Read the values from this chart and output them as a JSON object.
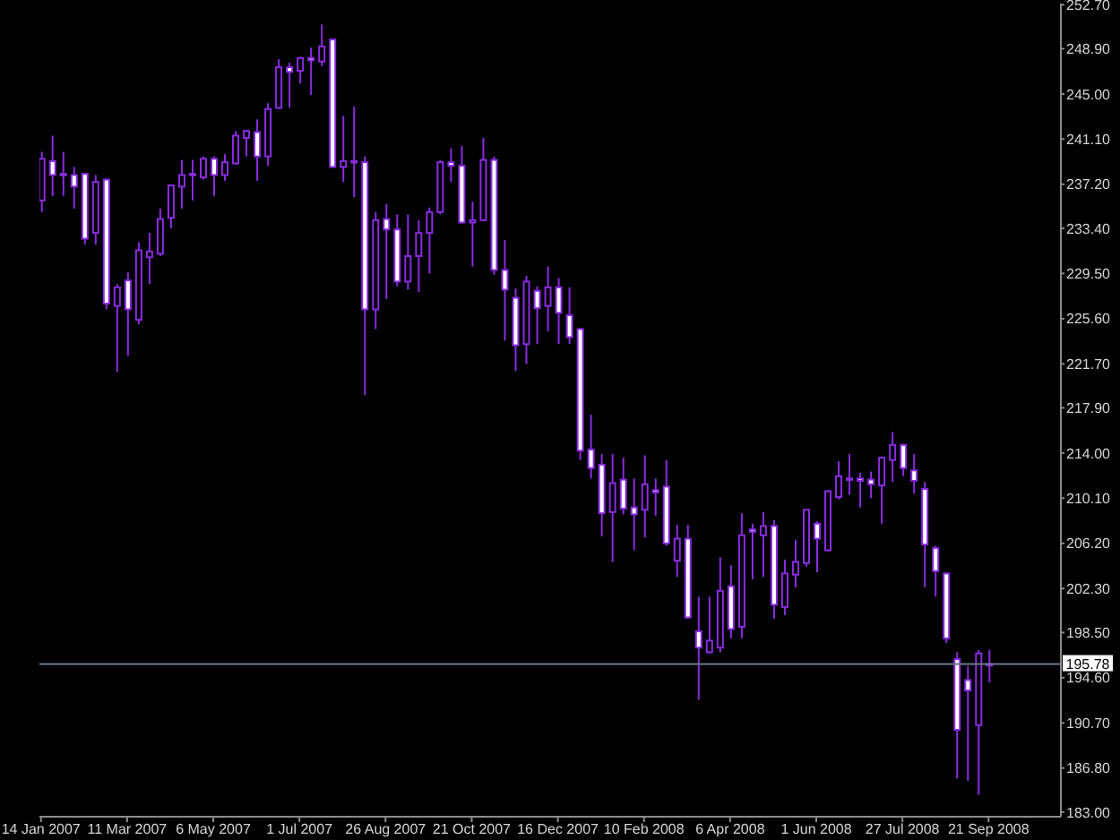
{
  "chart_data": {
    "type": "candlestick",
    "x": [
      "2007-01-14",
      "2007-01-21",
      "2007-01-28",
      "2007-02-04",
      "2007-02-11",
      "2007-02-18",
      "2007-02-25",
      "2007-03-04",
      "2007-03-11",
      "2007-03-18",
      "2007-03-25",
      "2007-04-01",
      "2007-04-08",
      "2007-04-15",
      "2007-04-22",
      "2007-04-29",
      "2007-05-06",
      "2007-05-13",
      "2007-05-20",
      "2007-05-27",
      "2007-06-03",
      "2007-06-10",
      "2007-06-17",
      "2007-06-24",
      "2007-07-01",
      "2007-07-08",
      "2007-07-15",
      "2007-07-22",
      "2007-07-29",
      "2007-08-05",
      "2007-08-12",
      "2007-08-19",
      "2007-08-26",
      "2007-09-02",
      "2007-09-09",
      "2007-09-16",
      "2007-09-23",
      "2007-09-30",
      "2007-10-07",
      "2007-10-14",
      "2007-10-21",
      "2007-10-28",
      "2007-11-04",
      "2007-11-11",
      "2007-11-18",
      "2007-11-25",
      "2007-12-02",
      "2007-12-09",
      "2007-12-16",
      "2007-12-23",
      "2007-12-30",
      "2008-01-06",
      "2008-01-13",
      "2008-01-20",
      "2008-01-27",
      "2008-02-03",
      "2008-02-10",
      "2008-02-17",
      "2008-02-24",
      "2008-03-02",
      "2008-03-09",
      "2008-03-16",
      "2008-03-23",
      "2008-03-30",
      "2008-04-06",
      "2008-04-13",
      "2008-04-20",
      "2008-04-27",
      "2008-05-04",
      "2008-05-11",
      "2008-05-18",
      "2008-05-25",
      "2008-06-01",
      "2008-06-08",
      "2008-06-15",
      "2008-06-22",
      "2008-06-29",
      "2008-07-06",
      "2008-07-13",
      "2008-07-20",
      "2008-07-27",
      "2008-08-03",
      "2008-08-10",
      "2008-08-17",
      "2008-08-24",
      "2008-08-31",
      "2008-09-07",
      "2008-09-14",
      "2008-09-21"
    ],
    "ohlc": [
      [
        235.8,
        240.0,
        234.8,
        239.4
      ],
      [
        239.2,
        241.4,
        236.2,
        238.0
      ],
      [
        238.0,
        240.0,
        236.2,
        238.1
      ],
      [
        238.0,
        238.7,
        235.1,
        237.0
      ],
      [
        238.1,
        238.2,
        232.0,
        232.5
      ],
      [
        233.0,
        238.0,
        232.0,
        237.4
      ],
      [
        237.6,
        237.7,
        226.4,
        226.9
      ],
      [
        226.7,
        228.6,
        221.0,
        228.3
      ],
      [
        228.9,
        229.6,
        222.4,
        226.4
      ],
      [
        225.5,
        232.2,
        225.1,
        231.5
      ],
      [
        230.9,
        233.0,
        228.6,
        231.4
      ],
      [
        231.2,
        235.1,
        231.0,
        234.2
      ],
      [
        234.3,
        237.2,
        233.4,
        237.1
      ],
      [
        237.0,
        239.3,
        235.1,
        238.0
      ],
      [
        238.0,
        239.3,
        235.8,
        238.1
      ],
      [
        237.8,
        239.6,
        237.6,
        239.4
      ],
      [
        239.4,
        239.6,
        236.2,
        238.0
      ],
      [
        238.0,
        239.8,
        237.5,
        239.1
      ],
      [
        239.0,
        241.8,
        238.9,
        241.4
      ],
      [
        241.2,
        241.9,
        239.6,
        241.8
      ],
      [
        241.7,
        242.8,
        237.5,
        239.6
      ],
      [
        239.6,
        244.2,
        238.8,
        243.7
      ],
      [
        243.8,
        248.0,
        243.7,
        247.3
      ],
      [
        247.3,
        247.7,
        243.8,
        246.9
      ],
      [
        247.0,
        248.2,
        245.9,
        248.1
      ],
      [
        248.1,
        249.0,
        244.9,
        247.9
      ],
      [
        247.8,
        251.0,
        247.4,
        249.1
      ],
      [
        249.7,
        249.8,
        238.6,
        238.7
      ],
      [
        238.7,
        243.1,
        237.4,
        239.2
      ],
      [
        239.2,
        243.9,
        236.1,
        239.1
      ],
      [
        239.1,
        239.6,
        219.0,
        226.4
      ],
      [
        226.4,
        234.8,
        224.7,
        234.1
      ],
      [
        234.2,
        235.5,
        227.3,
        233.3
      ],
      [
        233.3,
        234.6,
        228.4,
        228.8
      ],
      [
        228.8,
        234.6,
        228.1,
        231.0
      ],
      [
        231.0,
        234.1,
        227.9,
        233.0
      ],
      [
        233.0,
        235.2,
        229.5,
        234.8
      ],
      [
        234.8,
        239.3,
        234.6,
        239.1
      ],
      [
        239.1,
        240.3,
        237.4,
        238.8
      ],
      [
        238.8,
        240.5,
        233.8,
        233.9
      ],
      [
        233.9,
        235.7,
        230.1,
        234.1
      ],
      [
        234.1,
        241.2,
        234.0,
        239.3
      ],
      [
        239.3,
        239.6,
        229.4,
        229.8
      ],
      [
        229.8,
        232.4,
        223.7,
        228.1
      ],
      [
        227.4,
        228.2,
        221.1,
        223.3
      ],
      [
        223.4,
        229.3,
        221.7,
        228.8
      ],
      [
        228.0,
        228.4,
        223.4,
        226.5
      ],
      [
        226.7,
        230.1,
        224.5,
        228.3
      ],
      [
        228.3,
        229.1,
        223.4,
        226.1
      ],
      [
        225.9,
        228.3,
        223.4,
        224.0
      ],
      [
        224.7,
        224.8,
        213.4,
        214.2
      ],
      [
        214.3,
        217.3,
        211.8,
        212.7
      ],
      [
        213.0,
        213.9,
        206.8,
        208.8
      ],
      [
        208.9,
        213.9,
        204.6,
        211.4
      ],
      [
        211.7,
        213.6,
        208.7,
        209.2
      ],
      [
        209.3,
        211.8,
        205.6,
        208.7
      ],
      [
        209.1,
        213.8,
        206.7,
        211.3
      ],
      [
        210.8,
        211.8,
        208.6,
        210.6
      ],
      [
        211.1,
        213.4,
        206.0,
        206.2
      ],
      [
        204.7,
        207.8,
        203.3,
        206.6
      ],
      [
        206.6,
        207.8,
        199.7,
        199.8
      ],
      [
        198.6,
        201.6,
        192.7,
        197.2
      ],
      [
        196.8,
        201.6,
        196.7,
        197.8
      ],
      [
        197.2,
        205.0,
        196.8,
        202.1
      ],
      [
        202.5,
        204.3,
        198.0,
        198.8
      ],
      [
        199.0,
        208.8,
        198.0,
        206.9
      ],
      [
        207.4,
        207.9,
        203.1,
        207.2
      ],
      [
        206.9,
        208.9,
        203.3,
        207.7
      ],
      [
        207.7,
        208.2,
        199.7,
        200.9
      ],
      [
        200.7,
        204.8,
        200.0,
        203.6
      ],
      [
        203.5,
        206.5,
        202.4,
        204.6
      ],
      [
        204.5,
        209.1,
        204.2,
        209.1
      ],
      [
        207.9,
        208.1,
        203.7,
        206.6
      ],
      [
        205.6,
        210.8,
        205.5,
        210.7
      ],
      [
        210.2,
        213.3,
        210.0,
        212.0
      ],
      [
        211.7,
        213.9,
        210.4,
        211.8
      ],
      [
        211.8,
        212.3,
        209.3,
        211.6
      ],
      [
        211.7,
        212.4,
        210.1,
        211.3
      ],
      [
        211.2,
        213.7,
        207.9,
        213.6
      ],
      [
        213.4,
        215.8,
        211.5,
        214.7
      ],
      [
        214.7,
        214.8,
        212.0,
        212.7
      ],
      [
        212.5,
        213.9,
        210.5,
        211.6
      ],
      [
        210.9,
        211.5,
        202.4,
        206.1
      ],
      [
        205.8,
        206.0,
        201.6,
        203.8
      ],
      [
        203.6,
        203.7,
        197.6,
        198.0
      ],
      [
        196.2,
        196.8,
        185.9,
        190.1
      ],
      [
        194.4,
        195.6,
        185.7,
        193.5
      ],
      [
        190.5,
        197.0,
        184.5,
        196.7
      ],
      [
        195.7,
        197.0,
        194.2,
        195.78
      ]
    ],
    "color": "#8a2be2",
    "xlim": [
      "2007-01-13",
      "2008-11-07"
    ],
    "xticks": [
      {
        "value": "2007-01-14",
        "label": "14 Jan 2007"
      },
      {
        "value": "2007-03-11",
        "label": "11 Mar 2007"
      },
      {
        "value": "2007-05-06",
        "label": "6 May 2007"
      },
      {
        "value": "2007-07-01",
        "label": "1 Jul 2007"
      },
      {
        "value": "2007-08-26",
        "label": "26 Aug 2007"
      },
      {
        "value": "2007-10-21",
        "label": "21 Oct 2007"
      },
      {
        "value": "2007-12-16",
        "label": "16 Dec 2007"
      },
      {
        "value": "2008-02-10",
        "label": "10 Feb 2008"
      },
      {
        "value": "2008-04-06",
        "label": "6 Apr 2008"
      },
      {
        "value": "2008-06-01",
        "label": "1 Jun 2008"
      },
      {
        "value": "2008-07-27",
        "label": "27 Jul 2008"
      },
      {
        "value": "2008-09-21",
        "label": "21 Sep 2008"
      }
    ],
    "ylim": [
      182.6,
      252.8
    ],
    "yticks": [
      {
        "value": 252.7,
        "label": "252.70"
      },
      {
        "value": 248.9,
        "label": "248.90"
      },
      {
        "value": 245.0,
        "label": "245.00"
      },
      {
        "value": 241.1,
        "label": "241.10"
      },
      {
        "value": 237.2,
        "label": "237.20"
      },
      {
        "value": 233.4,
        "label": "233.40"
      },
      {
        "value": 229.5,
        "label": "229.50"
      },
      {
        "value": 225.6,
        "label": "225.60"
      },
      {
        "value": 221.7,
        "label": "221.70"
      },
      {
        "value": 217.9,
        "label": "217.90"
      },
      {
        "value": 214.0,
        "label": "214.00"
      },
      {
        "value": 210.1,
        "label": "210.10"
      },
      {
        "value": 206.2,
        "label": "206.20"
      },
      {
        "value": 202.3,
        "label": "202.30"
      },
      {
        "value": 198.5,
        "label": "198.50"
      },
      {
        "value": 194.6,
        "label": "194.60"
      },
      {
        "value": 190.7,
        "label": "190.70"
      },
      {
        "value": 186.8,
        "label": "186.80"
      },
      {
        "value": 183.0,
        "label": "183.00"
      }
    ],
    "ref_lines": [
      {
        "axis": "y",
        "value": 195.78,
        "label": "195.78",
        "color": "#6a7a8a"
      }
    ]
  }
}
